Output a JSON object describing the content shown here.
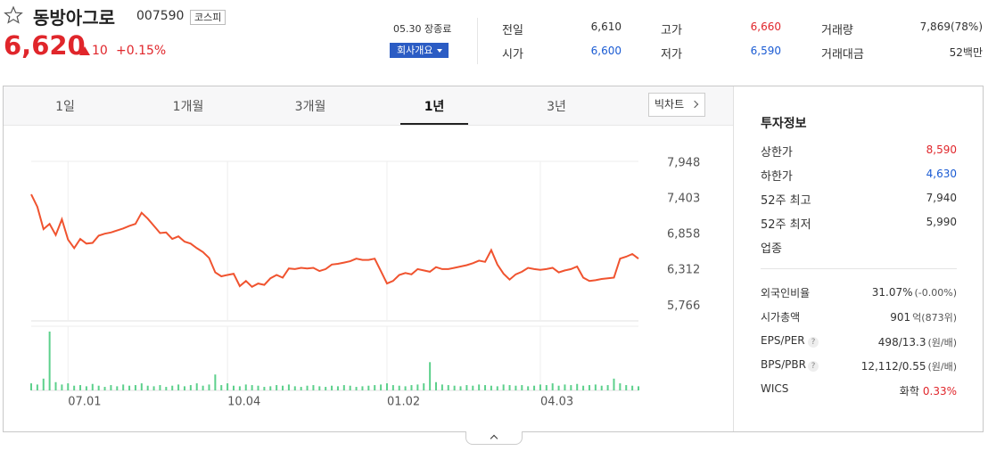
{
  "header": {
    "name": "동방아그로",
    "code": "007590",
    "market": "코스피"
  },
  "quote": {
    "price": "6,620",
    "change": "10",
    "change_rate": "+0.15%",
    "status": "05.30 장종료",
    "button": "회사개요"
  },
  "summary": [
    {
      "label": "전일",
      "value": "6,610"
    },
    {
      "label": "시가",
      "value": "6,600"
    },
    {
      "label": "고가",
      "value": "6,660"
    },
    {
      "label": "저가",
      "value": "6,590"
    },
    {
      "label": "거래량",
      "value": "7,869(78%)"
    },
    {
      "label": "거래대금",
      "value": "52백만"
    }
  ],
  "tabs": {
    "items": [
      "1일",
      "1개월",
      "3개월",
      "1년",
      "3년"
    ],
    "selected": 3,
    "big_chart": "빅차트"
  },
  "invest": {
    "title": "투자정보",
    "limits": [
      {
        "label": "상한가",
        "value": "8,590"
      },
      {
        "label": "하한가",
        "value": "4,630"
      },
      {
        "label": "52주 최고",
        "value": "7,940"
      },
      {
        "label": "52주 최저",
        "value": "5,990"
      },
      {
        "label": "업종"
      }
    ],
    "ratios": [
      {
        "label": "외국인비율",
        "value": "31.07%",
        "sub": "(-0.00%)"
      },
      {
        "label": "시가총액",
        "value": "901",
        "sub": "억(873위)"
      },
      {
        "label": "EPS/PER",
        "value": "498/13.3",
        "sub": "(원/배)",
        "help": "?"
      },
      {
        "label": "BPS/PBR",
        "value": "12,112/0.55",
        "sub": "(원/배)",
        "help": "?"
      },
      {
        "label": "WICS",
        "value": "화학",
        "sub": "0.33%"
      }
    ]
  },
  "chart_data": [
    {
      "type": "line",
      "color": "#f0532f",
      "grid": "x",
      "categories": [
        null,
        null,
        null,
        null,
        null,
        null,
        "07.01",
        null,
        null,
        null,
        null,
        null,
        null,
        null,
        null,
        null,
        null,
        null,
        null,
        null,
        null,
        null,
        null,
        null,
        null,
        null,
        null,
        null,
        null,
        null,
        null,
        null,
        "10.04",
        null,
        null,
        null,
        null,
        null,
        null,
        null,
        null,
        null,
        null,
        null,
        null,
        null,
        null,
        null,
        null,
        null,
        null,
        null,
        null,
        null,
        null,
        null,
        null,
        null,
        "01.02",
        null,
        null,
        null,
        null,
        null,
        null,
        null,
        null,
        null,
        null,
        null,
        null,
        null,
        null,
        null,
        null,
        null,
        null,
        null,
        null,
        null,
        null,
        null,
        null,
        "04.03",
        null,
        null,
        null,
        null,
        null,
        null,
        null,
        null,
        null,
        null,
        null,
        null,
        null,
        null,
        null,
        null
      ],
      "values": [
        7470,
        7280,
        6940,
        7020,
        6850,
        7090,
        6780,
        6650,
        6790,
        6720,
        6730,
        6840,
        6870,
        6890,
        6920,
        6950,
        6990,
        7020,
        7190,
        7100,
        6990,
        6880,
        6890,
        6790,
        6830,
        6750,
        6720,
        6650,
        6590,
        6500,
        6280,
        6220,
        6240,
        6260,
        6070,
        6150,
        6060,
        6110,
        6090,
        6190,
        6240,
        6200,
        6340,
        6330,
        6350,
        6340,
        6350,
        6300,
        6330,
        6400,
        6410,
        6430,
        6450,
        6490,
        6470,
        6470,
        6490,
        6300,
        6110,
        6150,
        6240,
        6270,
        6250,
        6330,
        6310,
        6290,
        6360,
        6330,
        6330,
        6350,
        6370,
        6390,
        6420,
        6460,
        6440,
        6620,
        6400,
        6260,
        6170,
        6250,
        6290,
        6350,
        6330,
        6320,
        6330,
        6350,
        6280,
        6310,
        6330,
        6370,
        6200,
        6150,
        6160,
        6180,
        6190,
        6200,
        6490,
        6520,
        6560,
        6490
      ],
      "ylim": [
        5540,
        7975
      ],
      "yticks": [
        {
          "value": 5766,
          "label": "5,766"
        },
        {
          "value": 6312,
          "label": "6,312"
        },
        {
          "value": 6858,
          "label": "6,858"
        },
        {
          "value": 7403,
          "label": "7,403"
        },
        {
          "value": 7948,
          "label": "7,948"
        }
      ]
    },
    {
      "type": "bar",
      "color": "#5dd08c",
      "ylim": [
        0,
        100
      ],
      "values": [
        12,
        10,
        20,
        100,
        14,
        10,
        12,
        8,
        9,
        7,
        11,
        8,
        6,
        9,
        7,
        10,
        8,
        9,
        12,
        8,
        7,
        9,
        6,
        8,
        10,
        7,
        9,
        12,
        8,
        10,
        27,
        9,
        12,
        8,
        7,
        10,
        9,
        8,
        6,
        7,
        9,
        8,
        10,
        7,
        6,
        8,
        9,
        7,
        6,
        8,
        7,
        9,
        8,
        6,
        7,
        8,
        9,
        10,
        12,
        9,
        8,
        7,
        9,
        10,
        12,
        48,
        14,
        10,
        9,
        8,
        7,
        9,
        8,
        10,
        9,
        8,
        7,
        10,
        9,
        8,
        9,
        7,
        8,
        10,
        9,
        12,
        8,
        10,
        9,
        11,
        8,
        9,
        10,
        8,
        9,
        20,
        12,
        9,
        8,
        7
      ]
    }
  ]
}
